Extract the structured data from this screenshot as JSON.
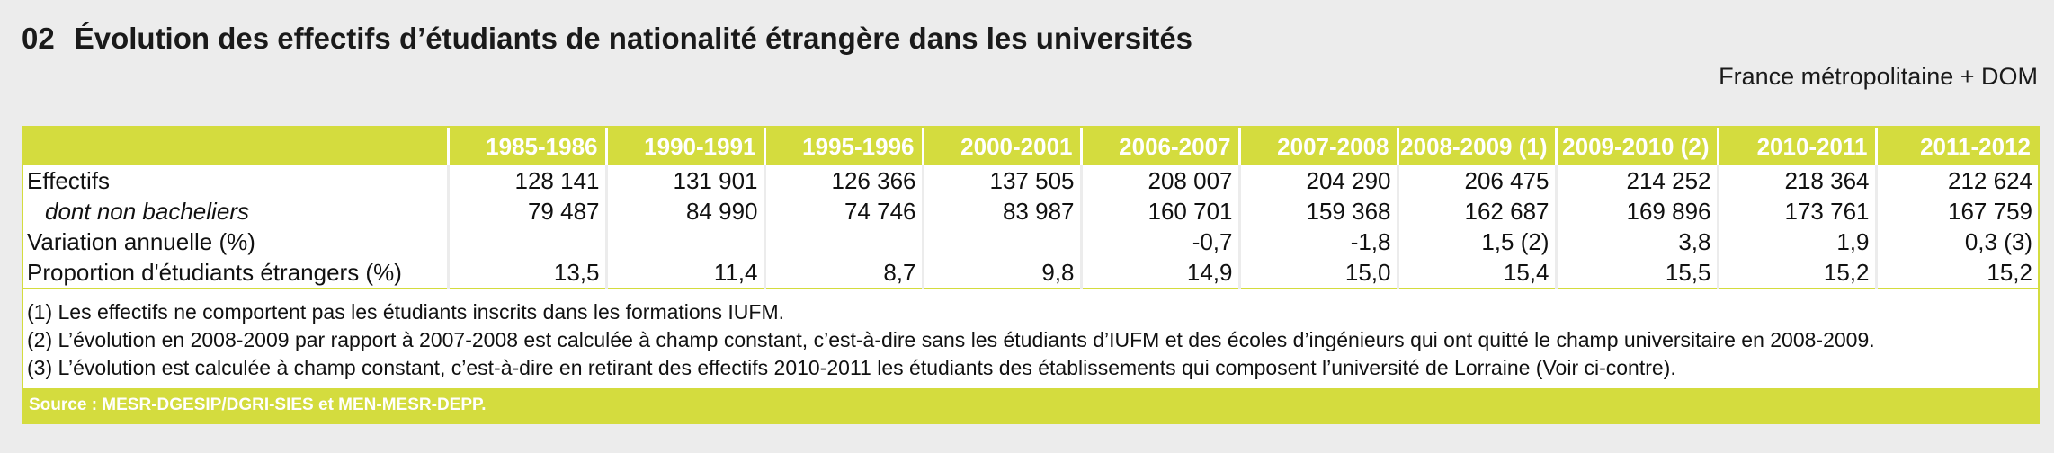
{
  "header": {
    "number": "02",
    "title": "Évolution des effectifs d’étudiants de nationalité étrangère dans les universités",
    "subtitle": "France métropolitaine + DOM"
  },
  "table": {
    "columns": [
      "1985-1986",
      "1990-1991",
      "1995-1996",
      "2000-2001",
      "2006-2007",
      "2007-2008",
      "2008-2009 (1)",
      "2009-2010 (2)",
      "2010-2011",
      "2011-2012"
    ],
    "rows": [
      {
        "label": "Effectifs",
        "values": [
          "128 141",
          "131 901",
          "126 366",
          "137 505",
          "208 007",
          "204 290",
          "206 475",
          "214 252",
          "218 364",
          "212 624"
        ]
      },
      {
        "label": "dont non bacheliers",
        "values": [
          "79 487",
          "84 990",
          "74 746",
          "83 987",
          "160 701",
          "159 368",
          "162 687",
          "169 896",
          "173 761",
          "167 759"
        ]
      },
      {
        "label": "Variation annuelle (%)",
        "values": [
          "",
          "",
          "",
          "",
          "-0,7",
          "-1,8",
          "1,5 (2)",
          "3,8",
          "1,9",
          "0,3 (3)"
        ]
      },
      {
        "label": "Proportion d'étudiants étrangers (%)",
        "values": [
          "13,5",
          "11,4",
          "8,7",
          "9,8",
          "14,9",
          "15,0",
          "15,4",
          "15,5",
          "15,2",
          "15,2"
        ]
      }
    ]
  },
  "notes": [
    "(1) Les effectifs ne comportent pas les étudiants inscrits dans les formations IUFM.",
    "(2) L’évolution en 2008-2009 par rapport à 2007-2008 est calculée à champ constant, c’est-à-dire sans les étudiants d’IUFM et des écoles d’ingénieurs qui ont quitté le champ universitaire en 2008-2009.",
    "(3) L’évolution est calculée à champ constant, c’est-à-dire en retirant des effectifs 2010-2011 les étudiants des établissements qui composent l’université de Lorraine (Voir ci-contre)."
  ],
  "source": "Source : MESR-DGESIP/DGRI-SIES et MEN-MESR-DEPP.",
  "colors": {
    "accent": "#d4dc3e",
    "background": "#ececec",
    "panel": "#ffffff"
  }
}
